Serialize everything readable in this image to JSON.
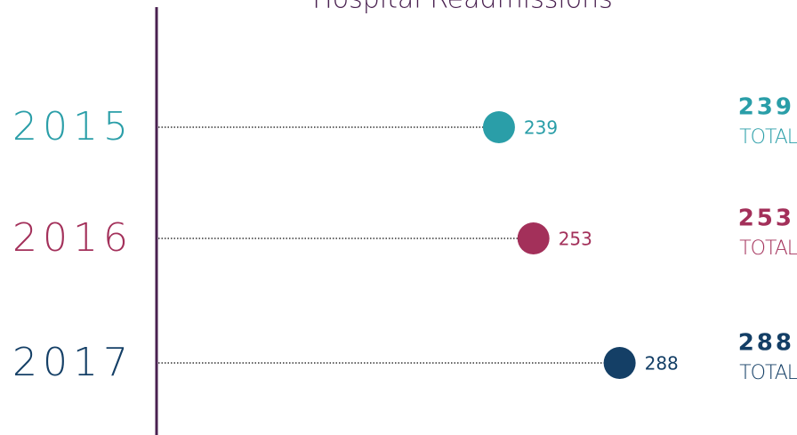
{
  "chart_data": {
    "type": "lollipop",
    "title": "Hospital Readmissions",
    "categories": [
      "2015",
      "2016",
      "2017"
    ],
    "values": [
      239,
      253,
      288
    ],
    "colors": [
      "#2a9ea8",
      "#a3305a",
      "#143f66"
    ],
    "total_label": "TOTAL",
    "xlim": [
      100,
      360
    ]
  }
}
